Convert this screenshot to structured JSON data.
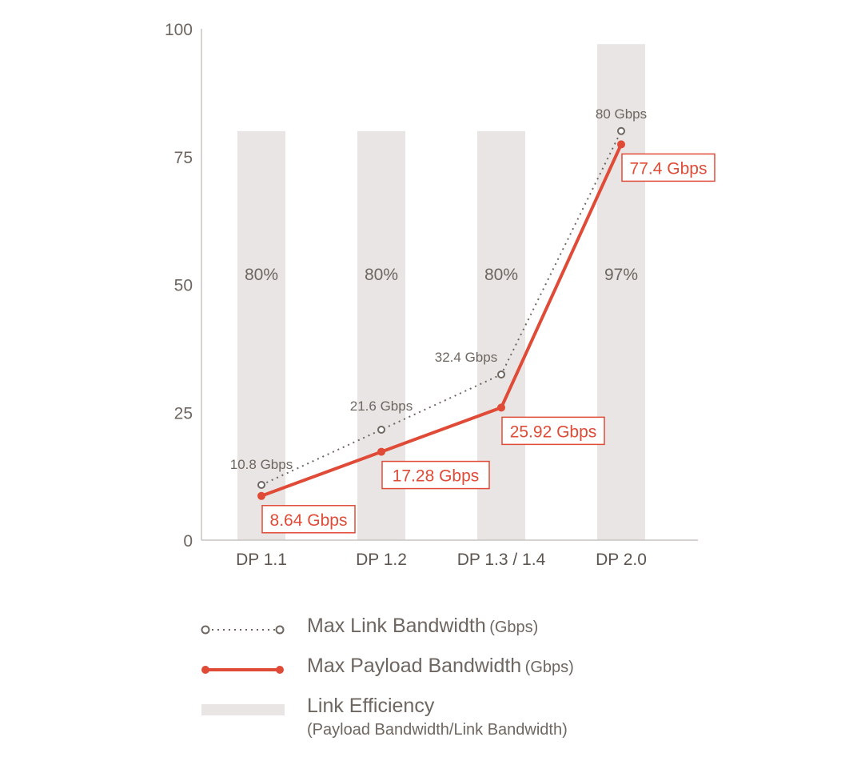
{
  "chart_data": {
    "type": "bar+line",
    "categories": [
      "DP 1.1",
      "DP 1.2",
      "DP 1.3 / 1.4",
      "DP 2.0"
    ],
    "highlight_category": "DP 2.0",
    "ylim": [
      0,
      100
    ],
    "yticks": [
      "0",
      "25",
      "50",
      "75",
      "100"
    ],
    "grid": false,
    "series": [
      {
        "name": "Link Efficiency",
        "kind": "bar",
        "values": [
          80,
          80,
          80,
          97
        ],
        "labels": [
          "80%",
          "80%",
          "80%",
          "97%"
        ],
        "color": "#e8e5e4"
      },
      {
        "name": "Max Link Bandwidth",
        "kind": "line-dotted",
        "values": [
          10.8,
          21.6,
          32.4,
          80
        ],
        "labels": [
          "10.8 Gbps",
          "21.6 Gbps",
          "32.4 Gbps",
          "80 Gbps"
        ],
        "color": "#6e6661"
      },
      {
        "name": "Max Payload Bandwidth",
        "kind": "line",
        "values": [
          8.64,
          17.28,
          25.92,
          77.4
        ],
        "labels": [
          "8.64 Gbps",
          "17.28 Gbps",
          "25.92 Gbps",
          "77.4 Gbps"
        ],
        "color": "#e04b37"
      }
    ],
    "legend_position": "bottom"
  },
  "legend": {
    "link": {
      "label": "Max Link Bandwidth",
      "unit": "(Gbps)"
    },
    "payload": {
      "label": "Max Payload Bandwidth",
      "unit": "(Gbps)"
    },
    "efficiency": {
      "label": "Link Efficiency",
      "sub": "(Payload Bandwidth/Link Bandwidth)"
    }
  }
}
